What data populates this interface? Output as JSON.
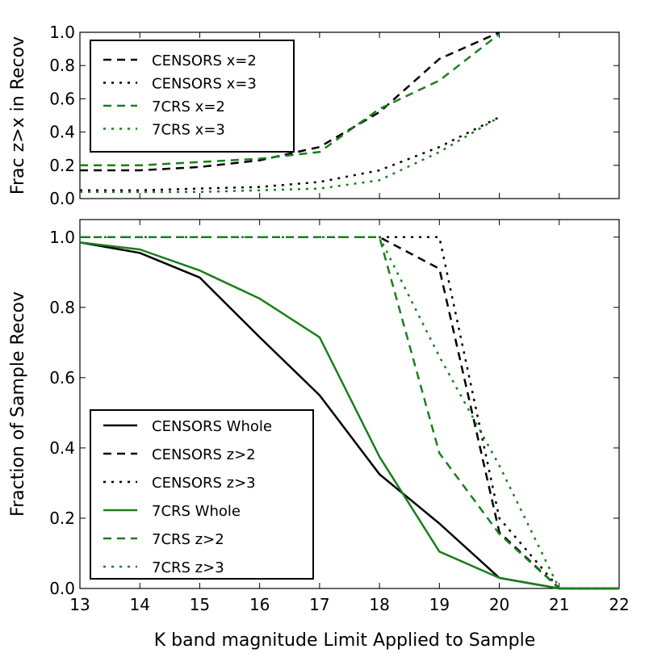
{
  "chart_data": [
    {
      "type": "line",
      "ylabel": "Frac z>x in Recov",
      "xlabel": "",
      "xlim": [
        13,
        22
      ],
      "ylim": [
        0,
        1.0
      ],
      "xticks": [
        "13",
        "14",
        "15",
        "16",
        "17",
        "18",
        "19",
        "20",
        "21",
        "22"
      ],
      "yticks": [
        "0.0",
        "0.2",
        "0.4",
        "0.6",
        "0.8",
        "1.0"
      ],
      "legend_position": "upper-left",
      "series": [
        {
          "name": "CENSORS x=2",
          "color": "#000000",
          "dash": "dashed",
          "x": [
            13,
            14,
            15,
            16,
            17,
            18,
            19,
            20
          ],
          "values": [
            0.17,
            0.17,
            0.19,
            0.23,
            0.31,
            0.52,
            0.84,
            1.0
          ]
        },
        {
          "name": "CENSORS x=3",
          "color": "#000000",
          "dash": "dotted",
          "x": [
            13,
            14,
            15,
            16,
            17,
            18,
            19,
            20
          ],
          "values": [
            0.05,
            0.05,
            0.06,
            0.07,
            0.1,
            0.17,
            0.31,
            0.49
          ]
        },
        {
          "name": "7CRS x=2",
          "color": "#1a7f1a",
          "dash": "dashed",
          "x": [
            13,
            14,
            15,
            16,
            17,
            18,
            19,
            20
          ],
          "values": [
            0.2,
            0.2,
            0.22,
            0.24,
            0.28,
            0.54,
            0.71,
            0.99
          ]
        },
        {
          "name": "7CRS x=3",
          "color": "#1a7f1a",
          "dash": "dotted",
          "x": [
            13,
            14,
            15,
            16,
            17,
            18,
            19,
            20
          ],
          "values": [
            0.04,
            0.04,
            0.04,
            0.05,
            0.06,
            0.11,
            0.28,
            0.49
          ]
        }
      ]
    },
    {
      "type": "line",
      "ylabel": "Fraction of Sample Recov",
      "xlabel": "K band magnitude Limit Applied to Sample",
      "xlim": [
        13,
        22
      ],
      "ylim": [
        0,
        1.05
      ],
      "xticks": [
        "13",
        "14",
        "15",
        "16",
        "17",
        "18",
        "19",
        "20",
        "21",
        "22"
      ],
      "yticks": [
        "0.0",
        "0.2",
        "0.4",
        "0.6",
        "0.8",
        "1.0"
      ],
      "legend_position": "lower-left",
      "series": [
        {
          "name": "CENSORS Whole",
          "color": "#000000",
          "dash": "solid",
          "x": [
            13,
            14,
            15,
            16,
            17,
            18,
            19,
            20,
            21,
            22
          ],
          "values": [
            0.985,
            0.955,
            0.885,
            0.715,
            0.55,
            0.325,
            0.185,
            0.03,
            0.0,
            0.0
          ]
        },
        {
          "name": "CENSORS z>2",
          "color": "#000000",
          "dash": "dashed",
          "x": [
            13,
            14,
            15,
            16,
            17,
            18,
            19,
            20,
            21,
            22
          ],
          "values": [
            1.0,
            1.0,
            1.0,
            1.0,
            1.0,
            1.0,
            0.91,
            0.16,
            0.0,
            0.0
          ]
        },
        {
          "name": "CENSORS z>3",
          "color": "#000000",
          "dash": "dotted",
          "x": [
            13,
            14,
            15,
            16,
            17,
            18,
            19,
            20,
            21,
            22
          ],
          "values": [
            1.0,
            1.0,
            1.0,
            1.0,
            1.0,
            1.0,
            1.0,
            0.2,
            0.0,
            0.0
          ]
        },
        {
          "name": "7CRS Whole",
          "color": "#1a7f1a",
          "dash": "solid",
          "x": [
            13,
            14,
            15,
            16,
            17,
            18,
            19,
            20,
            21,
            22
          ],
          "values": [
            0.985,
            0.965,
            0.905,
            0.825,
            0.715,
            0.375,
            0.105,
            0.03,
            0.0,
            0.0
          ]
        },
        {
          "name": "7CRS z>2",
          "color": "#1a7f1a",
          "dash": "dashed",
          "x": [
            13,
            14,
            15,
            16,
            17,
            18,
            19,
            20,
            21,
            22
          ],
          "values": [
            1.0,
            1.0,
            1.0,
            1.0,
            1.0,
            1.0,
            0.385,
            0.155,
            0.0,
            0.0
          ]
        },
        {
          "name": "7CRS z>3",
          "color": "#1a7f1a",
          "dash": "dotted",
          "x": [
            13,
            14,
            15,
            16,
            17,
            18,
            19,
            20,
            21,
            22
          ],
          "values": [
            1.0,
            1.0,
            1.0,
            1.0,
            1.0,
            1.0,
            0.66,
            0.35,
            0.0,
            0.0
          ]
        }
      ]
    }
  ]
}
